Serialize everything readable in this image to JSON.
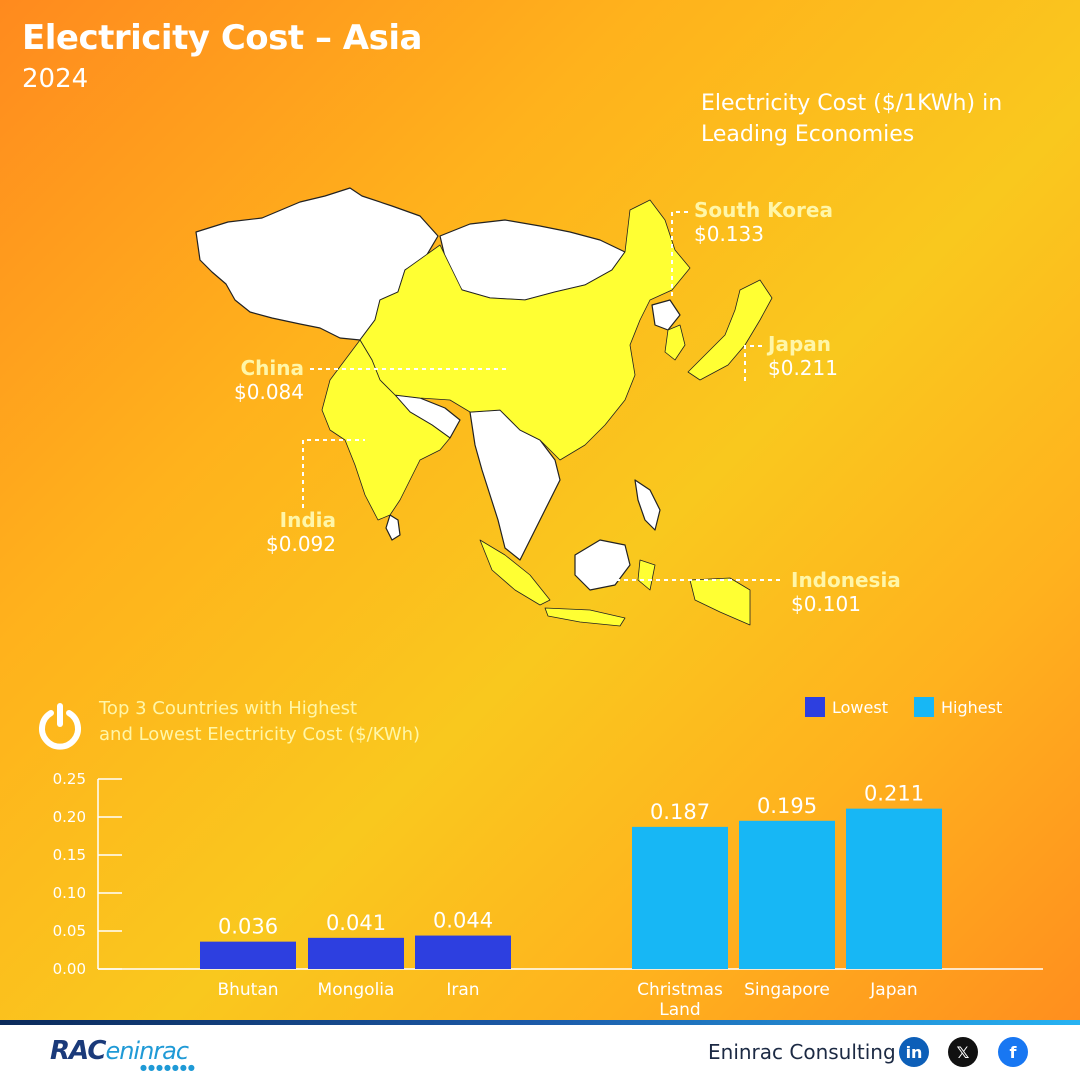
{
  "header": {
    "title": "Electricity Cost – Asia",
    "year": "2024"
  },
  "map": {
    "title_line1": "Electricity Cost ($/1KWh) in",
    "title_line2": "Leading Economies",
    "labels": [
      {
        "name": "South Korea",
        "value": "$0.133"
      },
      {
        "name": "Japan",
        "value": "$0.211"
      },
      {
        "name": "China",
        "value": "$0.084"
      },
      {
        "name": "India",
        "value": "$0.092"
      },
      {
        "name": "Indonesia",
        "value": "$0.101"
      }
    ],
    "colors": {
      "highlight": "#ffff33",
      "other": "#ffffff"
    }
  },
  "chart": {
    "title_line1": "Top 3 Countries with Highest",
    "title_line2": "and Lowest Electricity Cost ($/KWh)",
    "legend": {
      "lowest": "Lowest",
      "highest": "Highest"
    }
  },
  "chart_data": {
    "type": "bar",
    "categories": [
      "Bhutan",
      "Mongolia",
      "Iran",
      "Christmas Land",
      "Singapore",
      "Japan"
    ],
    "series": [
      {
        "name": "Lowest",
        "values": [
          0.036,
          0.041,
          0.044,
          null,
          null,
          null
        ],
        "color": "#2d3fe0"
      },
      {
        "name": "Highest",
        "values": [
          null,
          null,
          null,
          0.187,
          0.195,
          0.211
        ],
        "color": "#17b7f5"
      }
    ],
    "data_labels": [
      "0.036",
      "0.041",
      "0.044",
      "0.187",
      "0.195",
      "0.211"
    ],
    "yticks": [
      "0.00",
      "0.05",
      "0.10",
      "0.15",
      "0.20",
      "0.25"
    ],
    "ylim": [
      0,
      0.25
    ],
    "grid": false,
    "legend_position": "top-right"
  },
  "footer": {
    "brand": "RAC",
    "brand_suffix": "eninrac",
    "company": "Eninrac Consulting"
  }
}
